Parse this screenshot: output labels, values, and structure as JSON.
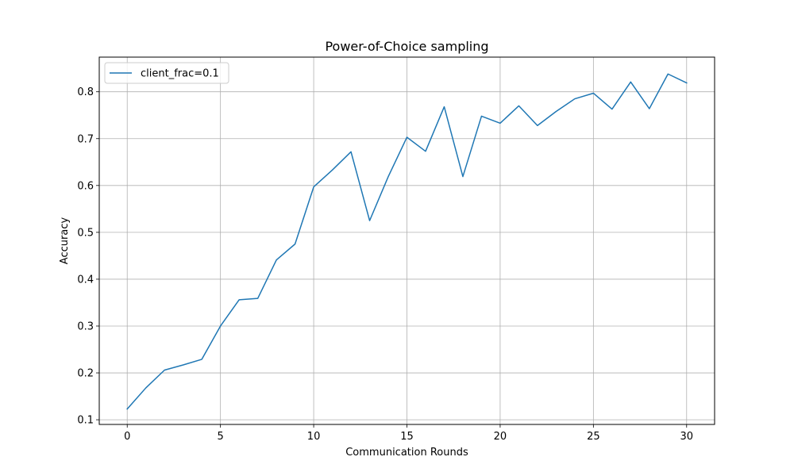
{
  "chart_data": {
    "type": "line",
    "title": "Power-of-Choice sampling",
    "xlabel": "Communication Rounds",
    "ylabel": "Accuracy",
    "xlim": [
      -1.5,
      31.5
    ],
    "ylim": [
      0.09,
      0.874
    ],
    "xticks": [
      0,
      5,
      10,
      15,
      20,
      25,
      30
    ],
    "yticks": [
      0.1,
      0.2,
      0.3,
      0.4,
      0.5,
      0.6,
      0.7,
      0.8
    ],
    "xtick_labels": [
      "0",
      "5",
      "10",
      "15",
      "20",
      "25",
      "30"
    ],
    "ytick_labels": [
      "0.1",
      "0.2",
      "0.3",
      "0.4",
      "0.5",
      "0.6",
      "0.7",
      "0.8"
    ],
    "grid": true,
    "legend_position": "top-left",
    "x": [
      0,
      1,
      2,
      3,
      4,
      5,
      6,
      7,
      8,
      9,
      10,
      11,
      12,
      13,
      14,
      15,
      16,
      17,
      18,
      19,
      20,
      21,
      22,
      23,
      24,
      25,
      26,
      27,
      28,
      29,
      30
    ],
    "series": [
      {
        "name": "client_frac=0.1",
        "color": "#1f77b4",
        "values": [
          0.123,
          0.168,
          0.206,
          0.217,
          0.229,
          0.3,
          0.356,
          0.359,
          0.441,
          0.475,
          0.597,
          0.633,
          0.672,
          0.525,
          0.619,
          0.703,
          0.673,
          0.768,
          0.619,
          0.748,
          0.733,
          0.77,
          0.728,
          0.758,
          0.785,
          0.797,
          0.763,
          0.821,
          0.764,
          0.838,
          0.819
        ]
      }
    ]
  }
}
